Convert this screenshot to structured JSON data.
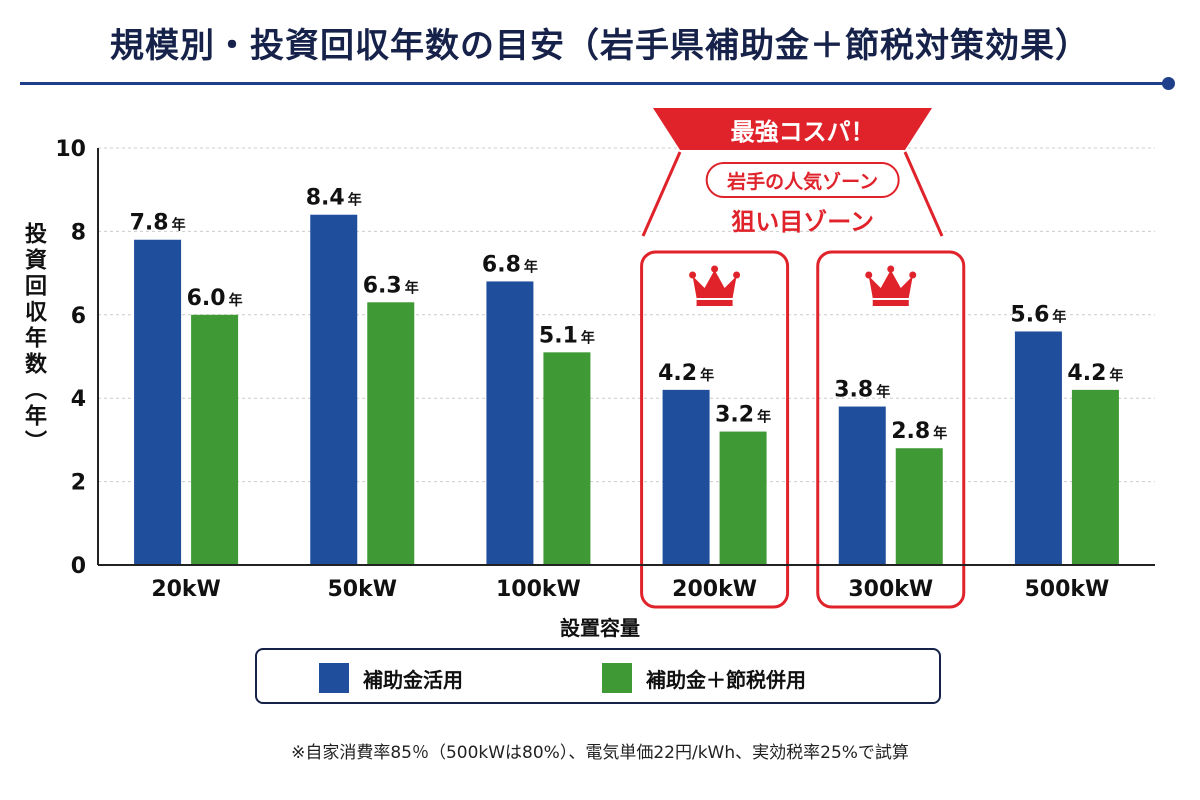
{
  "title": "規模別・投資回収年数の目安（岩手県補助金＋節税対策効果）",
  "footnote": "※自家消費率85％（500kWは80%）、電気単価22円/kWh、実効税率25%で試算",
  "highlight": {
    "banner": "最強コスパ！",
    "badge": "岩手の人気ゾーン",
    "subtitle": "狙い目ゾーン",
    "categories": [
      "200kW",
      "300kW"
    ],
    "icon": "crown-icon"
  },
  "colors": {
    "blue": "#1f4e9c",
    "green": "#3f9a35",
    "accent_red": "#e0222a",
    "title_navy": "#16224a",
    "grid": "#cccccc"
  },
  "chart_data": {
    "type": "bar",
    "title": "規模別・投資回収年数の目安（岩手県補助金＋節税対策効果）",
    "xlabel": "設置容量",
    "ylabel": "投資回収年数（年）",
    "categories": [
      "20kW",
      "50kW",
      "100kW",
      "200kW",
      "300kW",
      "500kW"
    ],
    "series": [
      {
        "name": "補助金活用",
        "values": [
          7.8,
          8.4,
          6.8,
          4.2,
          3.8,
          5.6
        ]
      },
      {
        "name": "補助金＋節税併用",
        "values": [
          6.0,
          6.3,
          5.1,
          3.2,
          2.8,
          4.2
        ]
      }
    ],
    "ylim": [
      0,
      10
    ],
    "yticks": [
      0,
      2,
      4,
      6,
      8,
      10
    ],
    "value_suffix": "年",
    "grid": true,
    "legend_position": "bottom"
  }
}
